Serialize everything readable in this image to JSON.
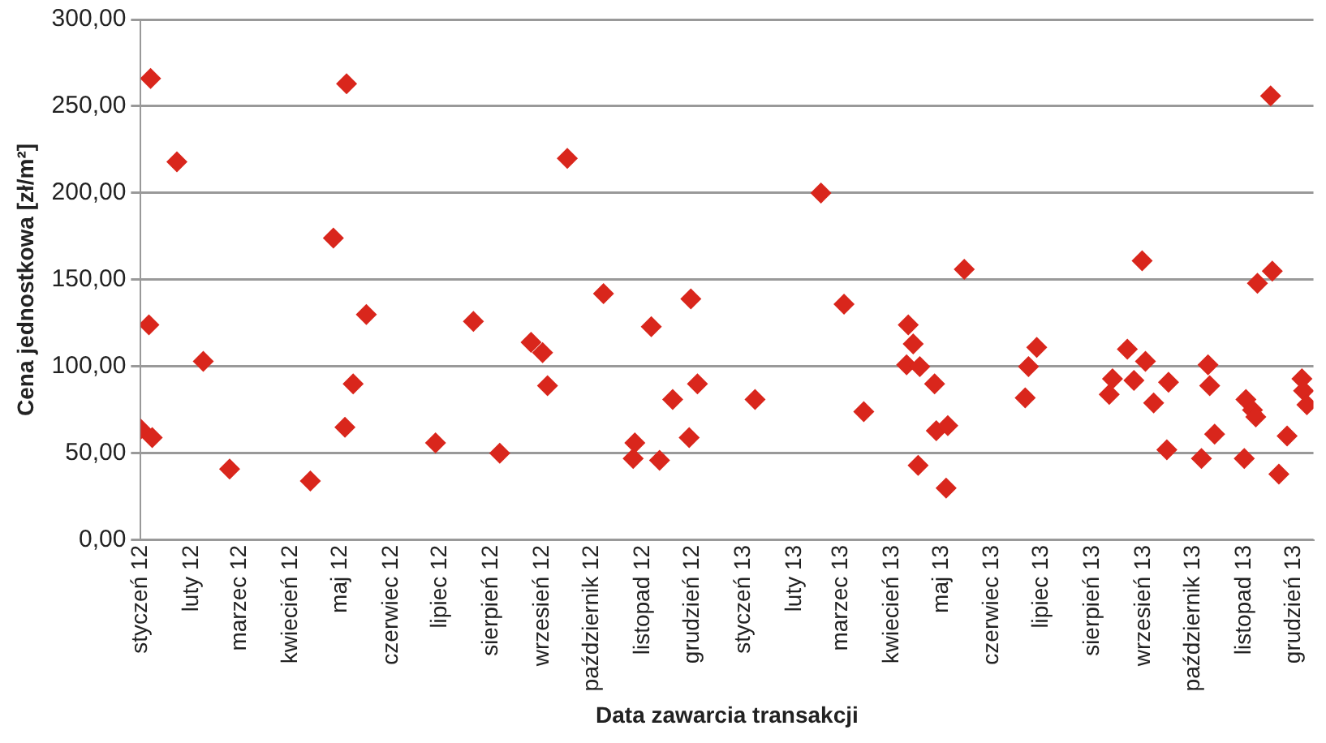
{
  "chart_data": {
    "type": "scatter",
    "xlabel": "Data zawarcia transakcji",
    "ylabel": "Cena jednostkowa [zł/m²]",
    "x": [
      "2012-01-01",
      "2012-01-07",
      "2012-01-23",
      "2012-01-06",
      "2012-02-08",
      "2012-01-08",
      "2012-02-24",
      "2012-04-13",
      "2012-05-05",
      "2012-04-27",
      "2012-05-17",
      "2012-05-09",
      "2012-05-04",
      "2012-07-21",
      "2012-06-28",
      "2012-08-06",
      "2012-09-16",
      "2012-08-25",
      "2012-09-01",
      "2012-09-04",
      "2012-10-08",
      "2012-11-06",
      "2012-11-30",
      "2012-10-27",
      "2012-10-26",
      "2012-11-11",
      "2012-11-19",
      "2012-12-04",
      "2012-11-29",
      "2013-01-08",
      "2013-02-17",
      "2013-03-03",
      "2013-03-15",
      "2013-05-15",
      "2013-04-11",
      "2013-04-14",
      "2013-04-10",
      "2013-04-18",
      "2013-04-27",
      "2013-04-28",
      "2013-05-05",
      "2013-04-17",
      "2013-05-04",
      "2013-06-21",
      "2013-06-23",
      "2013-06-28",
      "2013-08-11",
      "2013-08-13",
      "2013-08-22",
      "2013-08-26",
      "2013-09-02",
      "2013-08-31",
      "2013-09-07",
      "2013-09-16",
      "2013-09-15",
      "2013-10-10",
      "2013-10-11",
      "2013-10-14",
      "2013-10-06",
      "2013-11-02",
      "2013-11-06",
      "2013-11-08",
      "2013-11-01",
      "2013-11-09",
      "2013-11-18",
      "2013-11-17",
      "2013-11-27",
      "2013-11-22",
      "2013-12-06",
      "2013-12-07",
      "2013-12-09"
    ],
    "values": [
      64,
      266,
      218,
      124,
      103,
      59,
      41,
      34,
      263,
      174,
      130,
      90,
      65,
      126,
      56,
      50,
      220,
      114,
      108,
      89,
      142,
      123,
      139,
      56,
      47,
      46,
      81,
      90,
      59,
      81,
      200,
      136,
      74,
      156,
      124,
      113,
      101,
      100,
      90,
      63,
      66,
      43,
      30,
      82,
      100,
      111,
      84,
      93,
      110,
      92,
      103,
      161,
      79,
      91,
      52,
      101,
      89,
      61,
      47,
      81,
      75,
      71,
      47,
      148,
      155,
      256,
      60,
      38,
      93,
      86,
      78
    ],
    "color": "#d9261c",
    "marker": "diamond",
    "grid": "y",
    "legend": false,
    "xlim": [
      "2012-01-01",
      "2013-12-13"
    ],
    "xticks": [
      {
        "value": "2012-01",
        "label": "styczeń 12"
      },
      {
        "value": "2012-02",
        "label": "luty 12"
      },
      {
        "value": "2012-03",
        "label": "marzec 12"
      },
      {
        "value": "2012-04",
        "label": "kwiecień 12"
      },
      {
        "value": "2012-05",
        "label": "maj 12"
      },
      {
        "value": "2012-06",
        "label": "czerwiec 12"
      },
      {
        "value": "2012-07",
        "label": "lipiec 12"
      },
      {
        "value": "2012-08",
        "label": "sierpień 12"
      },
      {
        "value": "2012-09",
        "label": "wrzesień 12"
      },
      {
        "value": "2012-10",
        "label": "październik 12"
      },
      {
        "value": "2012-11",
        "label": "listopad 12"
      },
      {
        "value": "2012-12",
        "label": "grudzień 12"
      },
      {
        "value": "2013-01",
        "label": "styczeń 13"
      },
      {
        "value": "2013-02",
        "label": "luty 13"
      },
      {
        "value": "2013-03",
        "label": "marzec 13"
      },
      {
        "value": "2013-04",
        "label": "kwiecień 13"
      },
      {
        "value": "2013-05",
        "label": "maj 13"
      },
      {
        "value": "2013-06",
        "label": "czerwiec 13"
      },
      {
        "value": "2013-07",
        "label": "lipiec 13"
      },
      {
        "value": "2013-08",
        "label": "sierpień 13"
      },
      {
        "value": "2013-09",
        "label": "wrzesień 13"
      },
      {
        "value": "2013-10",
        "label": "październik 13"
      },
      {
        "value": "2013-11",
        "label": "listopad 13"
      },
      {
        "value": "2013-12",
        "label": "grudzień 13"
      }
    ],
    "ylim": [
      0,
      300
    ],
    "yticks": [
      {
        "value": 0,
        "label": "0,00"
      },
      {
        "value": 50,
        "label": "50,00"
      },
      {
        "value": 100,
        "label": "100,00"
      },
      {
        "value": 150,
        "label": "150,00"
      },
      {
        "value": 200,
        "label": "200,00"
      },
      {
        "value": 250,
        "label": "250,00"
      },
      {
        "value": 300,
        "label": "300,00"
      }
    ]
  }
}
